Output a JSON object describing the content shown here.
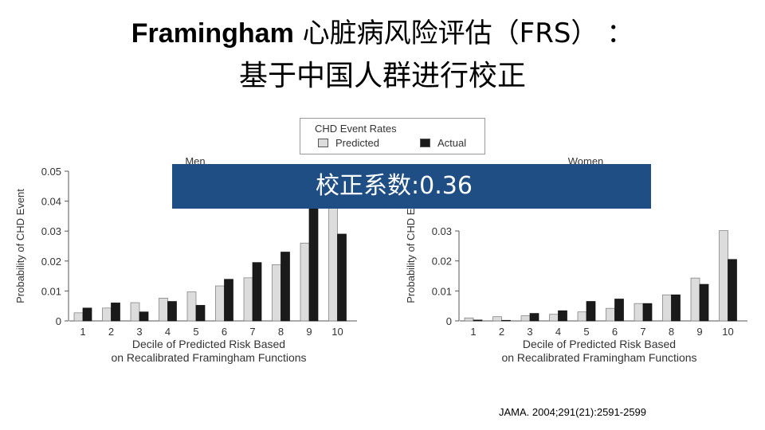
{
  "slide": {
    "title_latin": "Framingham",
    "title_rest": " 心脏病风险评估（FRS） ：",
    "subtitle": "基于中国人群进行校正",
    "banner": "校正系数:0.36",
    "citation": "JAMA. 2004;291(21):2591-2599"
  },
  "legend": {
    "title": "CHD Event Rates",
    "items": [
      {
        "label": "Predicted",
        "color": "#dcdcdc"
      },
      {
        "label": "Actual",
        "color": "#1a1a1a"
      }
    ]
  },
  "chart_data": [
    {
      "type": "bar",
      "title": "Men",
      "xlabel": "Decile of Predicted Risk Based\non Recalibrated Framingham Functions",
      "ylabel": "Probability of CHD Event",
      "categories": [
        "1",
        "2",
        "3",
        "4",
        "5",
        "6",
        "7",
        "8",
        "9",
        "10"
      ],
      "ylim": [
        0,
        0.05
      ],
      "yticks": [
        0,
        0.01,
        0.02,
        0.03,
        0.04,
        0.05
      ],
      "ytick_labels": [
        "0",
        "0.01",
        "0.02",
        "0.03",
        "0.04",
        "0.05"
      ],
      "series": [
        {
          "name": "Predicted",
          "values": [
            0.0027,
            0.0043,
            0.0061,
            0.0076,
            0.0097,
            0.0117,
            0.0144,
            0.0188,
            0.026,
            0.042
          ]
        },
        {
          "name": "Actual",
          "values": [
            0.0043,
            0.006,
            0.003,
            0.0065,
            0.0052,
            0.0139,
            0.0195,
            0.023,
            0.0385,
            0.029
          ]
        }
      ]
    },
    {
      "type": "bar",
      "title": "Women",
      "xlabel": "Decile of Predicted Risk Based\non Recalibrated Framingham Functions",
      "ylabel": "Probability of CHD Event",
      "categories": [
        "1",
        "2",
        "3",
        "4",
        "5",
        "6",
        "7",
        "8",
        "9",
        "10"
      ],
      "ylim": [
        0,
        0.05
      ],
      "yticks": [
        0,
        0.01,
        0.02,
        0.03
      ],
      "ytick_labels": [
        "0",
        "0.01",
        "0.02",
        "0.03"
      ],
      "series": [
        {
          "name": "Predicted",
          "values": [
            0.001,
            0.0014,
            0.0017,
            0.0022,
            0.003,
            0.0042,
            0.0058,
            0.0087,
            0.0143,
            0.0301
          ]
        },
        {
          "name": "Actual",
          "values": [
            0.0003,
            0.0002,
            0.0025,
            0.0034,
            0.0065,
            0.0073,
            0.0058,
            0.0087,
            0.0122,
            0.0205
          ]
        }
      ]
    }
  ]
}
